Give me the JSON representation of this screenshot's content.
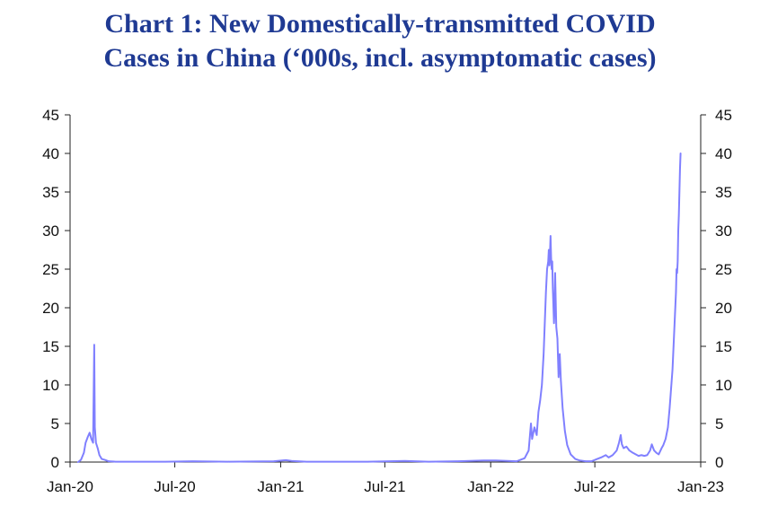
{
  "chart_data": {
    "type": "line",
    "title_line1": "Chart 1: New Domestically-transmitted COVID",
    "title_line2": "Cases in China (‘000s, incl. asymptomatic cases)",
    "xlabel": "",
    "ylabel": "",
    "x_tick_labels": [
      "Jan-20",
      "Jul-20",
      "Jan-21",
      "Jul-21",
      "Jan-22",
      "Jul-22",
      "Jan-23"
    ],
    "x_tick_dates": [
      "2020-01-01",
      "2020-07-01",
      "2021-01-01",
      "2021-07-01",
      "2022-01-01",
      "2022-07-01",
      "2023-01-01"
    ],
    "xlim": [
      "2020-01-01",
      "2023-01-01"
    ],
    "ylim": [
      0,
      45
    ],
    "y_ticks": [
      0,
      5,
      10,
      15,
      20,
      25,
      30,
      35,
      40,
      45
    ],
    "dual_axis": true,
    "grid": false,
    "line_color": "#8080ff",
    "series": [
      {
        "points": [
          [
            "2020-01-15",
            0.0
          ],
          [
            "2020-01-20",
            0.3
          ],
          [
            "2020-01-25",
            1.2
          ],
          [
            "2020-01-28",
            2.5
          ],
          [
            "2020-02-01",
            3.3
          ],
          [
            "2020-02-04",
            3.8
          ],
          [
            "2020-02-07",
            3.0
          ],
          [
            "2020-02-10",
            2.5
          ],
          [
            "2020-02-12",
            15.2
          ],
          [
            "2020-02-13",
            4.5
          ],
          [
            "2020-02-15",
            2.5
          ],
          [
            "2020-02-18",
            1.8
          ],
          [
            "2020-02-21",
            0.9
          ],
          [
            "2020-02-25",
            0.4
          ],
          [
            "2020-03-01",
            0.3
          ],
          [
            "2020-03-08",
            0.1
          ],
          [
            "2020-03-20",
            0.05
          ],
          [
            "2020-04-15",
            0.05
          ],
          [
            "2020-06-15",
            0.05
          ],
          [
            "2020-08-01",
            0.1
          ],
          [
            "2020-10-01",
            0.05
          ],
          [
            "2020-12-20",
            0.1
          ],
          [
            "2021-01-10",
            0.25
          ],
          [
            "2021-01-20",
            0.15
          ],
          [
            "2021-02-15",
            0.05
          ],
          [
            "2021-06-01",
            0.05
          ],
          [
            "2021-08-05",
            0.15
          ],
          [
            "2021-09-15",
            0.05
          ],
          [
            "2021-11-05",
            0.1
          ],
          [
            "2021-12-20",
            0.2
          ],
          [
            "2022-01-10",
            0.2
          ],
          [
            "2022-02-15",
            0.1
          ],
          [
            "2022-03-01",
            0.5
          ],
          [
            "2022-03-08",
            1.5
          ],
          [
            "2022-03-12",
            5.0
          ],
          [
            "2022-03-14",
            3.0
          ],
          [
            "2022-03-18",
            4.5
          ],
          [
            "2022-03-22",
            3.5
          ],
          [
            "2022-03-25",
            6.5
          ],
          [
            "2022-03-28",
            8.0
          ],
          [
            "2022-03-31",
            10.0
          ],
          [
            "2022-04-03",
            14.0
          ],
          [
            "2022-04-05",
            18.0
          ],
          [
            "2022-04-07",
            22.0
          ],
          [
            "2022-04-09",
            25.0
          ],
          [
            "2022-04-11",
            26.0
          ],
          [
            "2022-04-12",
            27.5
          ],
          [
            "2022-04-13",
            25.5
          ],
          [
            "2022-04-14",
            27.0
          ],
          [
            "2022-04-15",
            29.3
          ],
          [
            "2022-04-16",
            26.5
          ],
          [
            "2022-04-17",
            25.0
          ],
          [
            "2022-04-18",
            26.0
          ],
          [
            "2022-04-19",
            22.5
          ],
          [
            "2022-04-21",
            18.0
          ],
          [
            "2022-04-22",
            20.0
          ],
          [
            "2022-04-23",
            24.5
          ],
          [
            "2022-04-24",
            21.0
          ],
          [
            "2022-04-25",
            17.5
          ],
          [
            "2022-04-27",
            16.0
          ],
          [
            "2022-04-29",
            11.0
          ],
          [
            "2022-05-01",
            14.0
          ],
          [
            "2022-05-03",
            10.5
          ],
          [
            "2022-05-06",
            7.0
          ],
          [
            "2022-05-10",
            4.0
          ],
          [
            "2022-05-14",
            2.2
          ],
          [
            "2022-05-20",
            1.0
          ],
          [
            "2022-05-28",
            0.4
          ],
          [
            "2022-06-05",
            0.2
          ],
          [
            "2022-06-15",
            0.1
          ],
          [
            "2022-06-25",
            0.1
          ],
          [
            "2022-07-05",
            0.4
          ],
          [
            "2022-07-12",
            0.6
          ],
          [
            "2022-07-20",
            0.9
          ],
          [
            "2022-07-25",
            0.6
          ],
          [
            "2022-08-01",
            0.9
          ],
          [
            "2022-08-08",
            1.5
          ],
          [
            "2022-08-12",
            2.5
          ],
          [
            "2022-08-15",
            3.5
          ],
          [
            "2022-08-17",
            2.3
          ],
          [
            "2022-08-20",
            1.8
          ],
          [
            "2022-08-25",
            2.0
          ],
          [
            "2022-08-30",
            1.5
          ],
          [
            "2022-09-05",
            1.2
          ],
          [
            "2022-09-10",
            1.0
          ],
          [
            "2022-09-15",
            0.8
          ],
          [
            "2022-09-20",
            0.9
          ],
          [
            "2022-09-25",
            0.8
          ],
          [
            "2022-09-30",
            0.9
          ],
          [
            "2022-10-05",
            1.5
          ],
          [
            "2022-10-08",
            2.3
          ],
          [
            "2022-10-12",
            1.5
          ],
          [
            "2022-10-16",
            1.2
          ],
          [
            "2022-10-20",
            1.0
          ],
          [
            "2022-10-25",
            1.8
          ],
          [
            "2022-10-28",
            2.2
          ],
          [
            "2022-11-01",
            3.0
          ],
          [
            "2022-11-05",
            4.5
          ],
          [
            "2022-11-08",
            7.0
          ],
          [
            "2022-11-10",
            9.0
          ],
          [
            "2022-11-13",
            12.0
          ],
          [
            "2022-11-16",
            17.0
          ],
          [
            "2022-11-19",
            22.0
          ],
          [
            "2022-11-20",
            25.0
          ],
          [
            "2022-11-21",
            24.5
          ],
          [
            "2022-11-22",
            26.0
          ],
          [
            "2022-11-23",
            30.0
          ],
          [
            "2022-11-24",
            32.0
          ],
          [
            "2022-11-25",
            35.0
          ],
          [
            "2022-11-26",
            38.0
          ],
          [
            "2022-11-27",
            40.0
          ]
        ]
      }
    ]
  }
}
